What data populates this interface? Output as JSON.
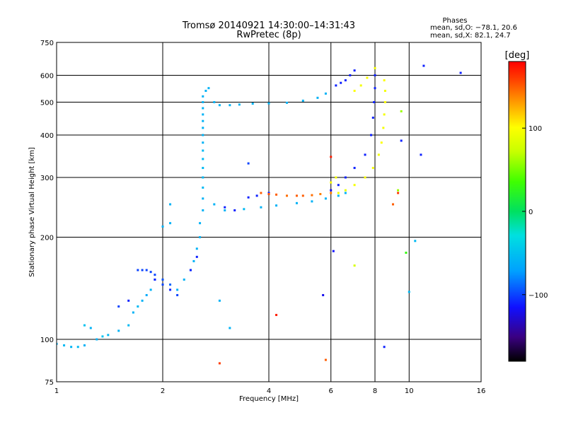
{
  "chart_data": {
    "type": "scatter",
    "title": "Tromsø 20140921 14:30:00–14:31:43",
    "subtitle": "RwPretec (8p)",
    "xlabel": "Frequency [MHz]",
    "ylabel": "Stationary phase Virtual Height [km]",
    "x_scale": "log",
    "y_scale": "log",
    "xlim": [
      1,
      16
    ],
    "ylim": [
      75,
      750
    ],
    "grid": true,
    "x_ticks": [
      "1",
      "2",
      "4",
      "6",
      "8",
      "10",
      "16"
    ],
    "y_ticks": [
      "75",
      "100",
      "200",
      "300",
      "400",
      "500",
      "600",
      "750"
    ],
    "colorbar": {
      "label": "[deg]",
      "ticks": [
        "100",
        "0",
        "−100"
      ],
      "tick_values": [
        100,
        0,
        -100
      ],
      "range": [
        -180,
        180
      ]
    },
    "legend": {
      "heading": "Phases",
      "line_o": "mean, sd,O: −78.1, 20.6",
      "line_x": "mean, sd,X: 82.1, 24.7"
    },
    "series": [
      {
        "points": [
          [
            1.0,
            97,
            -60
          ],
          [
            1.05,
            96,
            -55
          ],
          [
            1.1,
            95,
            -58
          ],
          [
            1.15,
            95,
            -55
          ],
          [
            1.2,
            96,
            -60
          ],
          [
            1.3,
            100,
            -60
          ],
          [
            1.35,
            102,
            -50
          ],
          [
            1.4,
            103,
            -55
          ],
          [
            1.5,
            106,
            -60
          ],
          [
            1.6,
            110,
            -55
          ],
          [
            1.2,
            110,
            -50
          ],
          [
            1.25,
            108,
            -60
          ],
          [
            1.65,
            120,
            -60
          ],
          [
            1.7,
            125,
            -55
          ],
          [
            1.75,
            130,
            -60
          ],
          [
            1.8,
            135,
            -65
          ],
          [
            1.85,
            140,
            -60
          ],
          [
            1.9,
            150,
            -60
          ],
          [
            1.7,
            160,
            -100
          ],
          [
            1.75,
            160,
            -100
          ],
          [
            1.85,
            158,
            -100
          ],
          [
            1.9,
            155,
            -100
          ],
          [
            2.0,
            150,
            -95
          ],
          [
            2.1,
            145,
            -90
          ],
          [
            2.2,
            140,
            -60
          ],
          [
            2.3,
            150,
            -60
          ],
          [
            2.4,
            160,
            -60
          ],
          [
            2.45,
            170,
            -60
          ],
          [
            2.5,
            185,
            -60
          ],
          [
            2.55,
            200,
            -60
          ],
          [
            2.55,
            220,
            -60
          ],
          [
            2.6,
            240,
            -60
          ],
          [
            2.6,
            260,
            -60
          ],
          [
            2.6,
            280,
            -55
          ],
          [
            2.6,
            300,
            -55
          ],
          [
            2.6,
            320,
            -55
          ],
          [
            2.6,
            340,
            -55
          ],
          [
            2.6,
            360,
            -55
          ],
          [
            2.6,
            380,
            -60
          ],
          [
            2.6,
            400,
            -60
          ],
          [
            2.6,
            420,
            -60
          ],
          [
            2.6,
            440,
            -60
          ],
          [
            2.6,
            460,
            -60
          ],
          [
            2.6,
            480,
            -60
          ],
          [
            2.6,
            500,
            -60
          ],
          [
            2.6,
            520,
            -60
          ],
          [
            2.65,
            540,
            -60
          ],
          [
            2.7,
            550,
            -60
          ],
          [
            2.8,
            500,
            -60
          ],
          [
            2.9,
            490,
            -60
          ],
          [
            3.1,
            490,
            -60
          ],
          [
            3.3,
            492,
            -60
          ],
          [
            3.6,
            495,
            -60
          ],
          [
            4.0,
            496,
            -60
          ],
          [
            4.5,
            498,
            -60
          ],
          [
            5.0,
            505,
            -60
          ],
          [
            5.5,
            515,
            -60
          ],
          [
            5.8,
            530,
            -60
          ],
          [
            2.8,
            250,
            -60
          ],
          [
            3.0,
            240,
            -60
          ],
          [
            3.4,
            242,
            -55
          ],
          [
            3.8,
            245,
            -60
          ],
          [
            4.2,
            248,
            -60
          ],
          [
            4.8,
            252,
            -60
          ],
          [
            5.3,
            255,
            -60
          ],
          [
            5.8,
            260,
            -60
          ],
          [
            6.3,
            265,
            -60
          ],
          [
            6.6,
            270,
            -60
          ],
          [
            2.1,
            220,
            -60
          ],
          [
            2.0,
            215,
            -60
          ],
          [
            2.1,
            250,
            -60
          ],
          [
            2.9,
            130,
            -60
          ],
          [
            3.1,
            108,
            -60
          ],
          [
            10.4,
            195,
            -55
          ],
          [
            10.0,
            138,
            -55
          ]
        ]
      },
      {
        "points": [
          [
            1.8,
            160,
            -100
          ],
          [
            1.9,
            150,
            -110
          ],
          [
            2.0,
            145,
            -100
          ],
          [
            2.1,
            140,
            -110
          ],
          [
            2.2,
            135,
            -100
          ],
          [
            1.6,
            130,
            -110
          ],
          [
            1.5,
            125,
            -100
          ],
          [
            3.0,
            245,
            -110
          ],
          [
            3.2,
            240,
            -110
          ],
          [
            3.5,
            262,
            -110
          ],
          [
            3.7,
            265,
            -110
          ],
          [
            4.0,
            270,
            -110
          ],
          [
            6.0,
            275,
            -120
          ],
          [
            6.3,
            285,
            -110
          ],
          [
            6.6,
            300,
            -110
          ],
          [
            7.0,
            320,
            -110
          ],
          [
            7.5,
            350,
            -110
          ],
          [
            7.8,
            400,
            -110
          ],
          [
            7.9,
            450,
            -110
          ],
          [
            7.95,
            500,
            -110
          ],
          [
            8.0,
            550,
            -110
          ],
          [
            8.0,
            600,
            -110
          ],
          [
            6.2,
            560,
            -110
          ],
          [
            6.4,
            570,
            -110
          ],
          [
            6.6,
            580,
            -110
          ],
          [
            6.8,
            600,
            -110
          ],
          [
            7.0,
            620,
            -110
          ],
          [
            2.4,
            160,
            -110
          ],
          [
            2.5,
            175,
            -110
          ],
          [
            8.5,
            95,
            -110
          ],
          [
            11.0,
            640,
            -110
          ],
          [
            14.0,
            610,
            -110
          ],
          [
            10.8,
            350,
            -110
          ],
          [
            9.5,
            385,
            -110
          ],
          [
            6.1,
            182,
            -115
          ],
          [
            5.7,
            135,
            -120
          ],
          [
            3.5,
            330,
            -100
          ]
        ]
      },
      {
        "points": [
          [
            3.8,
            270,
            150
          ],
          [
            4.0,
            268,
            155
          ],
          [
            4.2,
            267,
            150
          ],
          [
            4.5,
            265,
            145
          ],
          [
            4.8,
            265,
            150
          ],
          [
            5.0,
            265,
            150
          ],
          [
            5.3,
            266,
            145
          ],
          [
            5.6,
            268,
            140
          ],
          [
            6.0,
            270,
            140
          ],
          [
            6.0,
            345,
            170
          ],
          [
            4.2,
            118,
            170
          ],
          [
            2.9,
            85,
            160
          ],
          [
            5.8,
            87,
            150
          ],
          [
            9.0,
            250,
            150
          ],
          [
            9.3,
            270,
            160
          ]
        ]
      },
      {
        "points": [
          [
            6.3,
            270,
            95
          ],
          [
            6.6,
            275,
            90
          ],
          [
            7.0,
            285,
            95
          ],
          [
            7.5,
            300,
            100
          ],
          [
            7.9,
            320,
            95
          ],
          [
            8.2,
            350,
            95
          ],
          [
            8.35,
            380,
            100
          ],
          [
            8.45,
            420,
            95
          ],
          [
            8.5,
            460,
            95
          ],
          [
            8.55,
            500,
            100
          ],
          [
            8.55,
            540,
            95
          ],
          [
            8.5,
            580,
            100
          ],
          [
            7.0,
            540,
            100
          ],
          [
            7.3,
            560,
            95
          ],
          [
            7.6,
            590,
            100
          ],
          [
            8.0,
            630,
            95
          ],
          [
            6.2,
            300,
            95
          ],
          [
            6.0,
            290,
            100
          ],
          [
            9.3,
            275,
            60
          ],
          [
            9.8,
            180,
            30
          ],
          [
            7.0,
            165,
            80
          ],
          [
            9.5,
            470,
            60
          ]
        ]
      }
    ]
  }
}
